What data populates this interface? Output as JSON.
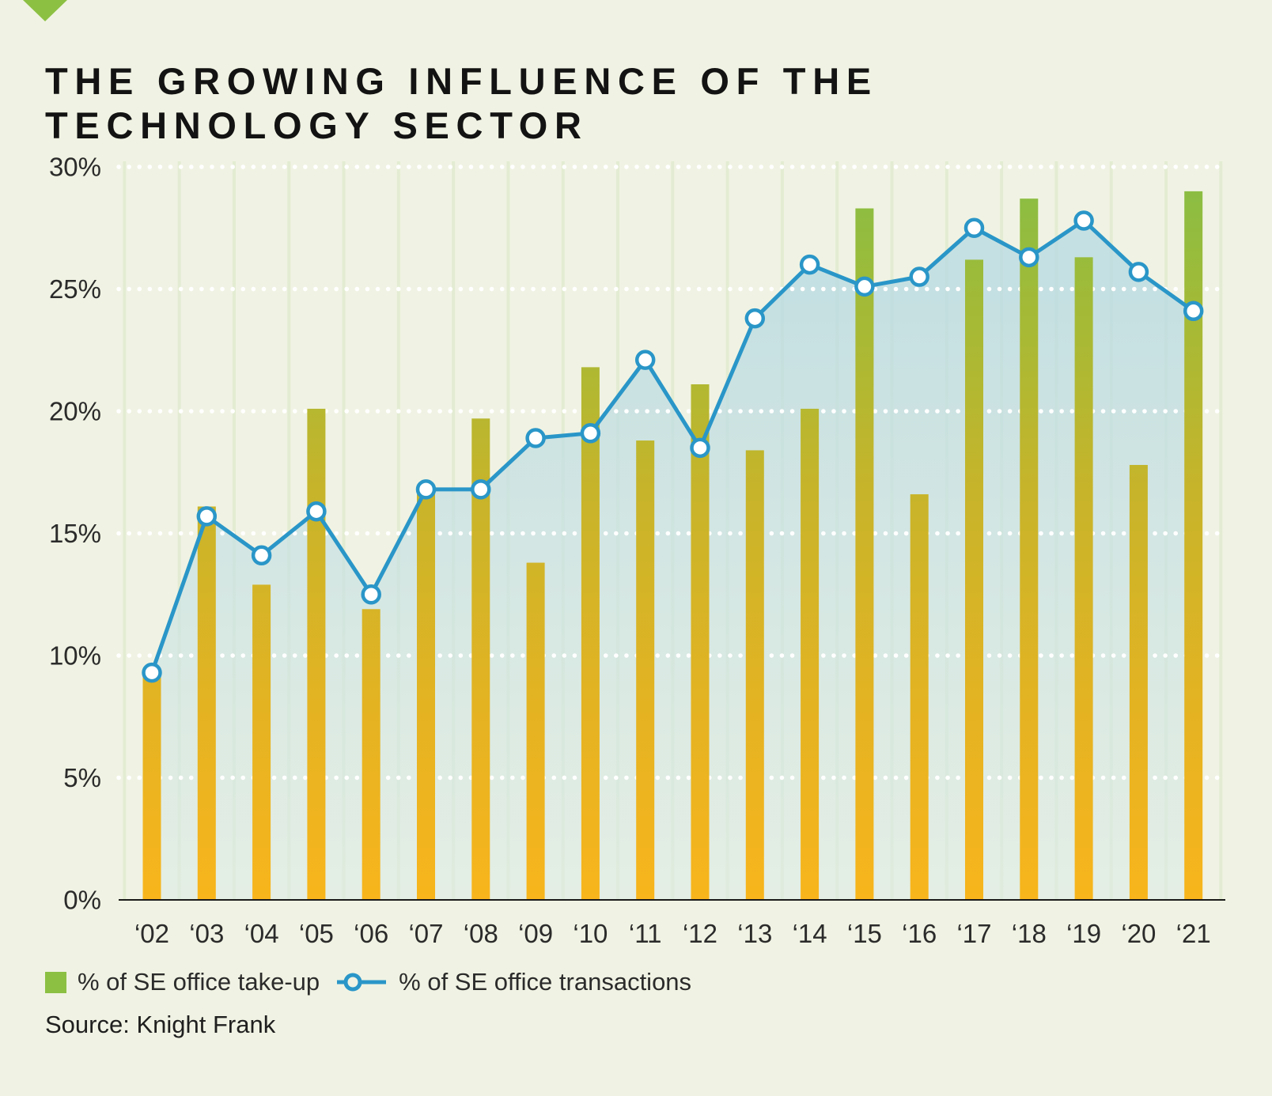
{
  "title": "THE GROWING INFLUENCE OF THE TECHNOLOGY SECTOR",
  "source": "Source: Knight Frank",
  "legend": {
    "takeup_label": "% of SE office take-up",
    "transactions_label": "% of SE office transactions"
  },
  "colors": {
    "background": "#f0f3e3",
    "accent_green": "#8cc043",
    "line_blue": "#2a96c8",
    "area_fill_top": "#b7d9e2",
    "area_fill_bottom": "#dcebe4",
    "bar_gradient_top": "#86be45",
    "bar_gradient_mid": "#c8b42a",
    "bar_gradient_bottom": "#f8b51c",
    "gridline_dotted": "#ffffff",
    "vertical_stripe": "#e3ecd2",
    "axis_line": "#1a1a1a",
    "title_text": "#131313"
  },
  "chart_data": {
    "type": "bar+line",
    "title": "THE GROWING INFLUENCE OF THE TECHNOLOGY SECTOR",
    "categories": [
      "‘02",
      "‘03",
      "‘04",
      "‘05",
      "‘06",
      "‘07",
      "‘08",
      "‘09",
      "‘10",
      "‘11",
      "‘12",
      "‘13",
      "‘14",
      "‘15",
      "‘16",
      "‘17",
      "‘18",
      "‘19",
      "‘20",
      "‘21"
    ],
    "series": [
      {
        "name": "% of SE office take-up",
        "type": "bar",
        "values": [
          9.4,
          16.1,
          12.9,
          20.1,
          11.9,
          16.6,
          19.7,
          13.8,
          21.8,
          18.8,
          21.1,
          18.4,
          20.1,
          28.3,
          16.6,
          26.2,
          28.7,
          26.3,
          17.8,
          29.0
        ]
      },
      {
        "name": "% of SE office transactions",
        "type": "line",
        "values": [
          9.3,
          15.7,
          14.1,
          15.9,
          12.5,
          16.8,
          16.8,
          18.9,
          19.1,
          22.1,
          18.5,
          23.8,
          26.0,
          25.1,
          25.5,
          27.5,
          26.3,
          27.8,
          25.7,
          24.1
        ]
      }
    ],
    "xlabel": "",
    "ylabel": "",
    "ylim": [
      0,
      30
    ],
    "yticks": [
      {
        "value": 0,
        "label": "0%"
      },
      {
        "value": 5,
        "label": "5%"
      },
      {
        "value": 10,
        "label": "10%"
      },
      {
        "value": 15,
        "label": "15%"
      },
      {
        "value": 20,
        "label": "20%"
      },
      {
        "value": 25,
        "label": "25%"
      },
      {
        "value": 30,
        "label": "30%"
      }
    ],
    "grid": "horizontal-dotted-white, vertical-pale-stripes",
    "legend_position": "bottom-left"
  }
}
